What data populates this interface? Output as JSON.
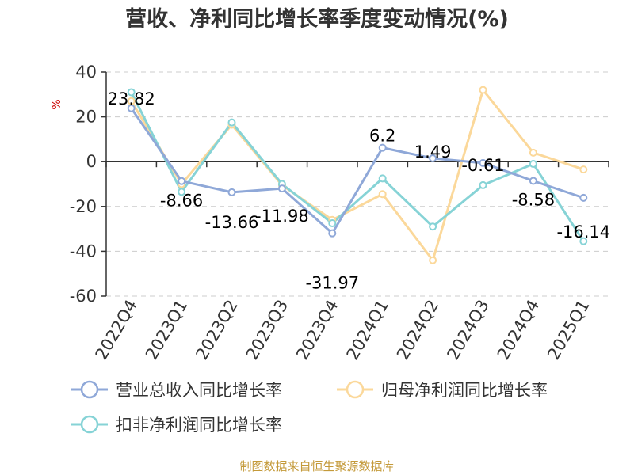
{
  "chart_data": {
    "type": "line",
    "title": "营收、净利同比增长率季度变动情况(%)",
    "ylabel": "%",
    "ylim": [
      -60,
      40
    ],
    "yticks": [
      40,
      20,
      0,
      -20,
      -40,
      -60
    ],
    "grid": true,
    "legend_position": "bottom",
    "categories": [
      "2022Q4",
      "2023Q1",
      "2023Q2",
      "2023Q3",
      "2023Q4",
      "2024Q1",
      "2024Q2",
      "2024Q3",
      "2024Q4",
      "2025Q1"
    ],
    "series": [
      {
        "name": "营业总收入同比增长率",
        "color": "#8fa8d8",
        "values": [
          23.82,
          -8.66,
          -13.66,
          -11.98,
          -31.97,
          6.2,
          1.49,
          -0.61,
          -8.58,
          -16.14
        ],
        "labels": [
          "23.82",
          "-8.66",
          "-13.66",
          "-11.98",
          "-31.97",
          "6.2",
          "1.49",
          "-0.61",
          "-8.58",
          "-16.14"
        ]
      },
      {
        "name": "归母净利润同比增长率",
        "color": "#fbd89a",
        "values": [
          27,
          -10,
          16.5,
          -10.5,
          -26,
          -14.5,
          -44,
          32,
          4,
          -3.5
        ]
      },
      {
        "name": "扣非净利润同比增长率",
        "color": "#86d3d6",
        "values": [
          31,
          -13.5,
          17.5,
          -10,
          -27.5,
          -7.5,
          -29,
          -10.5,
          -1,
          -35.5
        ]
      }
    ]
  },
  "source": "制图数据来自恒生聚源数据库"
}
